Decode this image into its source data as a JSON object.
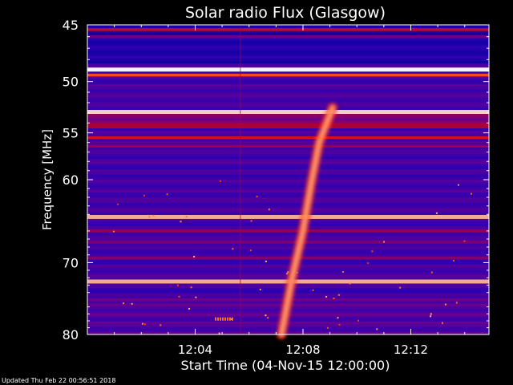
{
  "chart_data": {
    "type": "heatmap",
    "title": "Solar radio Flux (Glasgow)",
    "xlabel": "Start Time (04-Nov-15 12:00:00)",
    "ylabel": "Frequency [MHz]",
    "x_unit": "minutes after 12:00",
    "xlim": [
      0,
      14.9
    ],
    "ylim": [
      45,
      80
    ],
    "y_scale": "log",
    "x_ticks": [
      {
        "value": 4,
        "label": "12:04"
      },
      {
        "value": 8,
        "label": "12:08"
      },
      {
        "value": 12,
        "label": "12:12"
      }
    ],
    "y_ticks": [
      {
        "value": 45,
        "label": "45"
      },
      {
        "value": 50,
        "label": "50"
      },
      {
        "value": 55,
        "label": "55"
      },
      {
        "value": 60,
        "label": "60"
      },
      {
        "value": 70,
        "label": "70"
      },
      {
        "value": 80,
        "label": "80"
      }
    ],
    "colormap": [
      "#0a00a0",
      "#3000b0",
      "#6a0090",
      "#b00030",
      "#ff1a00",
      "#ff8040",
      "#ffffff"
    ],
    "background_level": 0.22,
    "intense_bands": [
      {
        "frequency_mhz": 45.4,
        "level": 0.55
      },
      {
        "frequency_mhz": 46.0,
        "level": 0.35
      },
      {
        "frequency_mhz": 48.9,
        "level": 1.0
      },
      {
        "frequency_mhz": 49.4,
        "level": 0.75
      },
      {
        "frequency_mhz": 52.9,
        "level": 0.95
      },
      {
        "frequency_mhz": 54.4,
        "level": 0.5
      },
      {
        "frequency_mhz": 55.5,
        "level": 0.6
      },
      {
        "frequency_mhz": 56.4,
        "level": 0.45
      },
      {
        "frequency_mhz": 64.3,
        "level": 0.9
      },
      {
        "frequency_mhz": 66.0,
        "level": 0.45
      },
      {
        "frequency_mhz": 67.4,
        "level": 0.4
      },
      {
        "frequency_mhz": 69.4,
        "level": 0.4
      },
      {
        "frequency_mhz": 72.5,
        "level": 0.9
      },
      {
        "frequency_mhz": 75.0,
        "level": 0.35
      }
    ],
    "burst": {
      "type": "drifting emission",
      "points": [
        {
          "t": 7.2,
          "f": 80.0
        },
        {
          "t": 7.6,
          "f": 72.0
        },
        {
          "t": 8.0,
          "f": 66.0
        },
        {
          "t": 8.3,
          "f": 60.5
        },
        {
          "t": 8.6,
          "f": 56.0
        },
        {
          "t": 9.1,
          "f": 52.5
        }
      ]
    }
  },
  "footer": {
    "updated": "Updated Thu Feb 22 00:56:51 2018"
  }
}
